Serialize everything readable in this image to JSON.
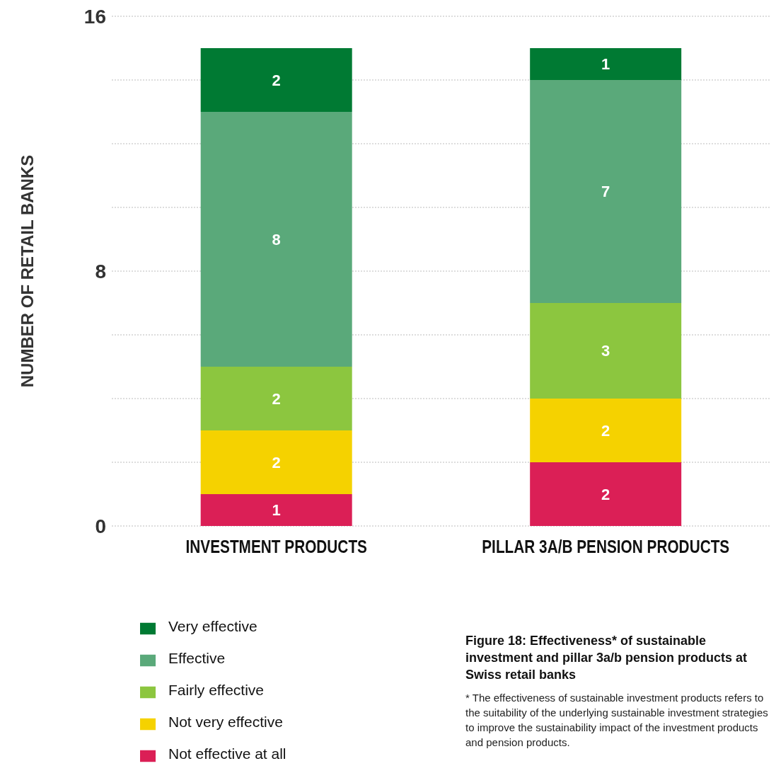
{
  "chart_data": {
    "type": "bar",
    "stacked": true,
    "title": "Figure 18: Effectiveness* of sustainable investment and pillar 3a/b pension products at Swiss retail banks",
    "ylabel": "NUMBER OF RETAIL BANKS",
    "categories": [
      "INVESTMENT PRODUCTS",
      "PILLAR 3A/B PENSION PRODUCTS"
    ],
    "series": [
      {
        "name": "Not effective at all",
        "color": "#db1f56",
        "values": [
          1,
          2
        ]
      },
      {
        "name": "Not very effective",
        "color": "#f5d200",
        "values": [
          2,
          2
        ]
      },
      {
        "name": "Fairly effective",
        "color": "#8cc63f",
        "values": [
          2,
          3
        ]
      },
      {
        "name": "Effective",
        "color": "#5aa97a",
        "values": [
          8,
          7
        ]
      },
      {
        "name": "Very effective",
        "color": "#007a33",
        "values": [
          2,
          1
        ]
      }
    ],
    "ylim": [
      0,
      16
    ],
    "yticks": [
      0,
      {
        "value": 2,
        "label": null
      },
      {
        "value": 4,
        "label": null
      },
      {
        "value": 6,
        "label": null
      },
      8,
      {
        "value": 10,
        "label": null
      },
      {
        "value": 12,
        "label": null
      },
      {
        "value": 14,
        "label": null
      },
      16
    ],
    "grid": "y",
    "data_labels": true,
    "legend": "bottom left",
    "annotations": [
      "* The effectiveness of sustainable investment products refers to the suitability of the underlying sustainable investment strategies to improve the sustainability impact of the investment products and pension products."
    ]
  }
}
